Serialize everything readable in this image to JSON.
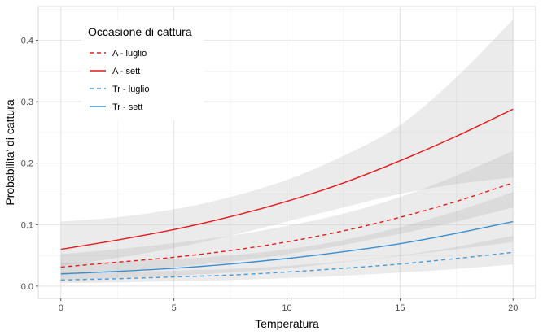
{
  "chart_data": {
    "type": "line",
    "xlabel": "Temperatura",
    "ylabel": "Probabilita' di cattura",
    "xlim": [
      -1,
      21
    ],
    "ylim": [
      -0.02,
      0.455
    ],
    "x_ticks": [
      0,
      5,
      10,
      15,
      20
    ],
    "y_ticks": [
      0.0,
      0.1,
      0.2,
      0.3,
      0.4
    ],
    "grid": true,
    "legend": {
      "title": "Occasione di cattura",
      "placement": "top-left"
    },
    "x": [
      0,
      2.5,
      5,
      7.5,
      10,
      12.5,
      15,
      17.5,
      20
    ],
    "series": [
      {
        "name": "A - luglio",
        "color": "#e41a1c",
        "dash": "dashed",
        "values": [
          0.031,
          0.039,
          0.047,
          0.058,
          0.072,
          0.09,
          0.112,
          0.138,
          0.168
        ],
        "lower": [
          0.018,
          0.024,
          0.031,
          0.04,
          0.052,
          0.067,
          0.085,
          0.105,
          0.128
        ],
        "upper": [
          0.052,
          0.06,
          0.07,
          0.082,
          0.098,
          0.118,
          0.145,
          0.18,
          0.22
        ]
      },
      {
        "name": "A - sett",
        "color": "#e41a1c",
        "dash": "solid",
        "values": [
          0.06,
          0.075,
          0.092,
          0.113,
          0.138,
          0.168,
          0.204,
          0.244,
          0.288
        ],
        "lower": [
          0.033,
          0.046,
          0.062,
          0.082,
          0.105,
          0.128,
          0.15,
          0.166,
          0.177
        ],
        "upper": [
          0.105,
          0.112,
          0.125,
          0.145,
          0.173,
          0.212,
          0.262,
          0.34,
          0.434
        ]
      },
      {
        "name": "Tr - luglio",
        "color": "#4a9ad6",
        "dash": "dashed",
        "values": [
          0.01,
          0.012,
          0.015,
          0.018,
          0.023,
          0.029,
          0.036,
          0.045,
          0.055
        ],
        "lower": [
          0.005,
          0.006,
          0.008,
          0.01,
          0.013,
          0.017,
          0.022,
          0.028,
          0.035
        ],
        "upper": [
          0.022,
          0.023,
          0.025,
          0.028,
          0.033,
          0.04,
          0.05,
          0.064,
          0.082
        ]
      },
      {
        "name": "Tr - sett",
        "color": "#3a8fd0",
        "dash": "solid",
        "values": [
          0.02,
          0.024,
          0.029,
          0.036,
          0.045,
          0.056,
          0.069,
          0.086,
          0.105
        ],
        "lower": [
          0.01,
          0.013,
          0.017,
          0.022,
          0.029,
          0.039,
          0.049,
          0.06,
          0.072
        ],
        "upper": [
          0.038,
          0.04,
          0.044,
          0.05,
          0.06,
          0.075,
          0.096,
          0.122,
          0.153
        ]
      }
    ]
  }
}
